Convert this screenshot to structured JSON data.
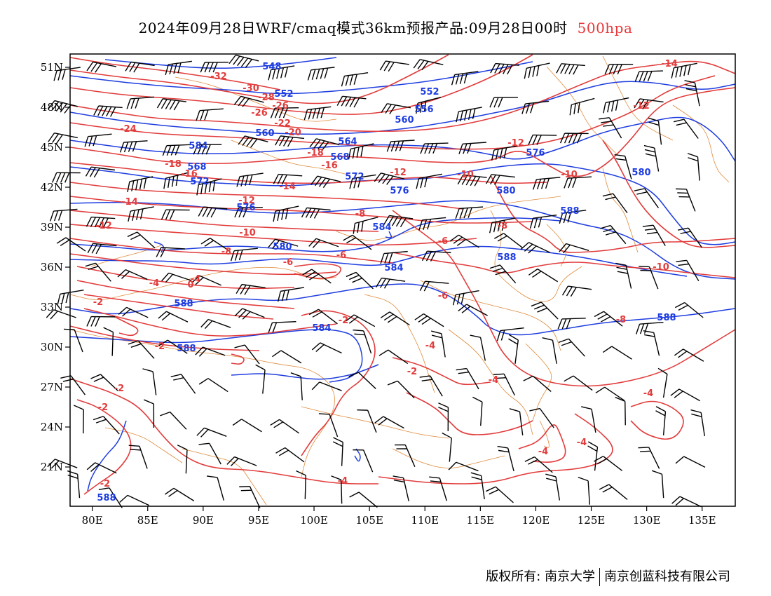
{
  "header": {
    "title": "2024年09月28日WRF/cmaq模式36km预报产品:09月28日00时",
    "level": "500hpa",
    "level_color": "#e8383a"
  },
  "axes": {
    "lon_labels": [
      "80E",
      "85E",
      "90E",
      "95E",
      "100E",
      "105E",
      "110E",
      "115E",
      "120E",
      "125E",
      "130E",
      "135E"
    ],
    "lat_labels": [
      "51N",
      "48N",
      "45N",
      "42N",
      "39N",
      "36N",
      "33N",
      "30N",
      "27N",
      "24N",
      "21N"
    ]
  },
  "colors": {
    "temperature_contour": "#e23c3c",
    "height_contour": "#1e3de0",
    "boundaries": "#e08a3a",
    "wind_barbs": "#000000"
  },
  "icons": [
    "wind-barb-icon"
  ],
  "temperature_labels": [
    "-32",
    "-30",
    "-28",
    "-26",
    "-26",
    "-24",
    "-22",
    "-20",
    "-18",
    "-18",
    "-16",
    "-16",
    "-14",
    "-14",
    "-14",
    "-12",
    "-12",
    "-12",
    "-12",
    "-12",
    "-10",
    "-10",
    "-10",
    "-10",
    "-8",
    "-8",
    "-8",
    "-8",
    "-6",
    "-6",
    "-6",
    "-6",
    "-4",
    "-4",
    "-4",
    "-4",
    "-4",
    "-4",
    "-4",
    "-4",
    "-2",
    "-2",
    "-2",
    "-2",
    "-2",
    "-2",
    "-2",
    "0"
  ],
  "height_labels": [
    "548",
    "552",
    "552",
    "556",
    "560",
    "560",
    "564",
    "568",
    "568",
    "572",
    "572",
    "576",
    "576",
    "576",
    "580",
    "580",
    "580",
    "584",
    "584",
    "584",
    "584",
    "588",
    "588",
    "588",
    "588",
    "588",
    "588"
  ],
  "footer": {
    "copyright_left": "版权所有: 南京大学",
    "copyright_right": "南京创蓝科技有限公司"
  }
}
